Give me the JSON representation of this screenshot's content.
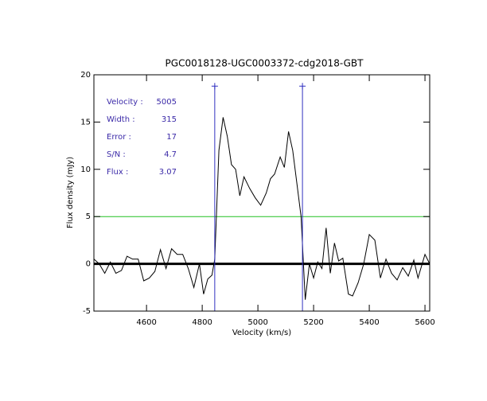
{
  "chart_data": {
    "type": "line",
    "title": "PGC0018128-UGC0003372-cdg2018-GBT",
    "x_label": "Velocity (km/s)",
    "y_label": "Flux density (mJy)",
    "xlim": [
      4411,
      5617
    ],
    "ylim": [
      -5,
      20
    ],
    "xticks": [
      4600,
      4800,
      5000,
      5200,
      5400,
      5600
    ],
    "yticks": [
      -5,
      0,
      5,
      10,
      15,
      20
    ],
    "series": [
      {
        "color": "#000000",
        "x": [
          4411,
          4430,
          4450,
          4470,
          4490,
          4510,
          4530,
          4550,
          4570,
          4590,
          4610,
          4630,
          4650,
          4670,
          4690,
          4710,
          4730,
          4750,
          4770,
          4790,
          4805,
          4820,
          4835,
          4845,
          4860,
          4875,
          4890,
          4905,
          4920,
          4935,
          4950,
          4970,
          4990,
          5010,
          5030,
          5045,
          5060,
          5080,
          5095,
          5110,
          5125,
          5140,
          5155,
          5170,
          5185,
          5200,
          5215,
          5230,
          5245,
          5260,
          5275,
          5290,
          5305,
          5325,
          5340,
          5360,
          5380,
          5400,
          5420,
          5440,
          5460,
          5480,
          5500,
          5520,
          5540,
          5560,
          5575,
          5600,
          5617
        ],
        "values": [
          0.5,
          0.0,
          -1.0,
          0.2,
          -1.0,
          -0.7,
          0.8,
          0.5,
          0.5,
          -1.8,
          -1.5,
          -0.8,
          1.5,
          -0.5,
          1.6,
          1.0,
          1.0,
          -0.5,
          -2.5,
          0.0,
          -3.2,
          -1.6,
          -1.2,
          0.5,
          12.0,
          15.5,
          13.5,
          10.5,
          10.0,
          7.2,
          9.2,
          8.0,
          7.0,
          6.2,
          7.5,
          9.0,
          9.5,
          11.3,
          10.2,
          14.0,
          12.0,
          8.5,
          5.0,
          -3.8,
          0.0,
          -1.5,
          0.2,
          -0.5,
          3.8,
          -1.0,
          2.2,
          0.3,
          0.6,
          -3.2,
          -3.4,
          -2.0,
          0.0,
          3.1,
          2.5,
          -1.5,
          0.5,
          -1.0,
          -1.7,
          -0.4,
          -1.3,
          0.4,
          -1.5,
          1.0,
          0.0
        ]
      }
    ],
    "baseline": {
      "value": 0,
      "color": "#000000"
    },
    "threshold": {
      "value": 5,
      "color": "#22c022"
    },
    "window": {
      "values": [
        4845,
        5160
      ],
      "top": 18.8,
      "color": "#3030c0"
    },
    "annotations": [
      {
        "label": "Velocity :",
        "value": 5005
      },
      {
        "label": "Width :",
        "value": 315
      },
      {
        "label": "Error :",
        "value": 17
      },
      {
        "label": "S/N :",
        "value": 4.7
      },
      {
        "label": "Flux :",
        "value": 3.07
      }
    ]
  }
}
